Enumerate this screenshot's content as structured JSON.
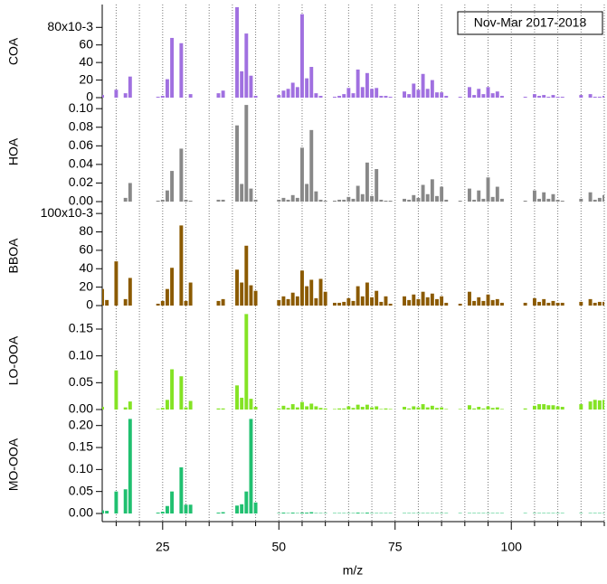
{
  "chart_data": {
    "type": "bar",
    "annotation": "Nov-Mar 2017-2018",
    "xlabel": "m/z",
    "xlim": [
      12,
      120
    ],
    "xticks": [
      25,
      50,
      75,
      100
    ],
    "xminor": [
      15,
      20,
      30,
      35,
      40,
      45,
      55,
      60,
      65,
      70,
      80,
      85,
      90,
      95,
      105,
      110,
      115,
      120
    ],
    "x": [
      12,
      13,
      15,
      17,
      18,
      24,
      25,
      26,
      27,
      29,
      30,
      31,
      37,
      38,
      41,
      42,
      43,
      44,
      45,
      50,
      51,
      52,
      53,
      54,
      55,
      56,
      57,
      58,
      59,
      60,
      62,
      63,
      64,
      65,
      66,
      67,
      68,
      69,
      70,
      71,
      72,
      73,
      74,
      77,
      78,
      79,
      80,
      81,
      82,
      83,
      84,
      85,
      86,
      89,
      91,
      92,
      93,
      94,
      95,
      96,
      97,
      98,
      103,
      105,
      106,
      107,
      108,
      109,
      110,
      111,
      115,
      117,
      118,
      119,
      120
    ],
    "series": [
      {
        "name": "COA",
        "color": "#a070e0",
        "ylim": [
          0,
          105
        ],
        "yticks": [
          0,
          20,
          40,
          60,
          {
            "value": 80,
            "label": "80x10-3"
          }
        ],
        "values": [
          3,
          0,
          9,
          5,
          24,
          1,
          2,
          21,
          68,
          62,
          0,
          4,
          5,
          8,
          103,
          30,
          73,
          25,
          2,
          3,
          8,
          10,
          17,
          12,
          95,
          22,
          35,
          5,
          2,
          0,
          1,
          2,
          4,
          11,
          5,
          32,
          12,
          28,
          10,
          11,
          2,
          2,
          1,
          7,
          4,
          16,
          9,
          27,
          10,
          20,
          6,
          6,
          2,
          1,
          12,
          3,
          10,
          4,
          12,
          5,
          7,
          2,
          1,
          4,
          2,
          3,
          1,
          3,
          1,
          1,
          3,
          4,
          1,
          1,
          2
        ]
      },
      {
        "name": "HOA",
        "color": "#888888",
        "ylim": [
          0,
          0.107
        ],
        "yticks": [
          {
            "value": 0,
            "label": "0.00"
          },
          {
            "value": 0.02,
            "label": "0.02"
          },
          {
            "value": 0.04,
            "label": "0.04"
          },
          {
            "value": 0.06,
            "label": "0.06"
          },
          {
            "value": 0.08,
            "label": "0.08"
          },
          {
            "value": 0.1,
            "label": "0.10"
          }
        ],
        "values": [
          0,
          0,
          0,
          0.004,
          0.02,
          0.001,
          0.002,
          0.012,
          0.033,
          0.057,
          0.002,
          0.001,
          0.002,
          0.002,
          0.082,
          0.019,
          0.104,
          0.014,
          0.002,
          0.002,
          0.004,
          0.002,
          0.007,
          0.004,
          0.058,
          0.019,
          0.077,
          0.011,
          0.002,
          0.001,
          0.001,
          0.002,
          0.002,
          0.005,
          0.003,
          0.017,
          0.008,
          0.042,
          0.006,
          0.035,
          0.002,
          0.001,
          0.001,
          0.003,
          0.002,
          0.007,
          0.004,
          0.018,
          0.008,
          0.024,
          0.006,
          0.016,
          0.002,
          0.001,
          0.014,
          0.002,
          0.012,
          0.003,
          0.026,
          0.005,
          0.016,
          0.003,
          0.001,
          0.012,
          0.003,
          0.01,
          0.003,
          0.008,
          0.002,
          0.001,
          0.003,
          0.01,
          0.002,
          0.004,
          0.007
        ]
      },
      {
        "name": "BBOA",
        "color": "#8b5a00",
        "ylim": [
          0,
          108
        ],
        "yticks": [
          0,
          20,
          40,
          60,
          80,
          {
            "value": 100,
            "label": "100x10-3"
          }
        ],
        "values": [
          18,
          6,
          48,
          7,
          30,
          2,
          5,
          18,
          41,
          87,
          5,
          25,
          5,
          7,
          39,
          25,
          65,
          22,
          16,
          6,
          10,
          7,
          14,
          10,
          38,
          21,
          28,
          8,
          29,
          15,
          3,
          3,
          4,
          8,
          5,
          21,
          10,
          25,
          9,
          16,
          4,
          10,
          2,
          10,
          6,
          12,
          7,
          15,
          9,
          13,
          7,
          10,
          3,
          2,
          15,
          5,
          9,
          5,
          12,
          6,
          7,
          3,
          3,
          8,
          4,
          7,
          3,
          5,
          3,
          3,
          4,
          7,
          3,
          4,
          4
        ]
      },
      {
        "name": "LO-OOA",
        "color": "#84e324",
        "ylim": [
          0,
          0.182
        ],
        "yticks": [
          {
            "value": 0,
            "label": "0.00"
          },
          {
            "value": 0.05,
            "label": "0.05"
          },
          {
            "value": 0.1,
            "label": "0.10"
          },
          0.15
        ],
        "values": [
          0.005,
          0,
          0.073,
          0.004,
          0.015,
          0.001,
          0.003,
          0.018,
          0.075,
          0.062,
          0.004,
          0.016,
          0.002,
          0.002,
          0.045,
          0.022,
          0.178,
          0.02,
          0.005,
          0.002,
          0.007,
          0.003,
          0.01,
          0.004,
          0.014,
          0.006,
          0.011,
          0.006,
          0.003,
          0.002,
          0.001,
          0.002,
          0.002,
          0.006,
          0.003,
          0.009,
          0.005,
          0.009,
          0.004,
          0.006,
          0.001,
          0.002,
          0.001,
          0.005,
          0.002,
          0.006,
          0.004,
          0.01,
          0.004,
          0.007,
          0.003,
          0.004,
          0.001,
          0.001,
          0.008,
          0.002,
          0.005,
          0.002,
          0.006,
          0.003,
          0.004,
          0.001,
          0.002,
          0.007,
          0.01,
          0.01,
          0.008,
          0.008,
          0.006,
          0.005,
          0.01,
          0.015,
          0.018,
          0.017,
          0.018
        ]
      },
      {
        "name": "MO-OOA",
        "color": "#20c070",
        "ylim": [
          0,
          0.222
        ],
        "yticks": [
          {
            "value": 0,
            "label": "0.00"
          },
          {
            "value": 0.05,
            "label": "0.05"
          },
          {
            "value": 0.1,
            "label": "0.10"
          },
          0.15,
          {
            "value": 0.2,
            "label": "0.20"
          }
        ],
        "values": [
          0.007,
          0.006,
          0.05,
          0.055,
          0.215,
          0.002,
          0.004,
          0.017,
          0.05,
          0.105,
          0.02,
          0.02,
          0.002,
          0.003,
          0.018,
          0.021,
          0.05,
          0.215,
          0.025,
          0.001,
          0.002,
          0.001,
          0.002,
          0.001,
          0.002,
          0.002,
          0.003,
          0.001,
          0.001,
          0.001,
          0.001,
          0.001,
          0.001,
          0.001,
          0.001,
          0.002,
          0.001,
          0.002,
          0.001,
          0.001,
          0.001,
          0.001,
          0.001,
          0.001,
          0.001,
          0.001,
          0.001,
          0.001,
          0.001,
          0.001,
          0.001,
          0.001,
          0.001,
          0.001,
          0.001,
          0.001,
          0.001,
          0.001,
          0.001,
          0.001,
          0.001,
          0.001,
          0.001,
          0.001,
          0.001,
          0.001,
          0.001,
          0.001,
          0.001,
          0.001,
          0.001,
          0.001,
          0.001,
          0.001,
          0.001
        ]
      }
    ]
  }
}
